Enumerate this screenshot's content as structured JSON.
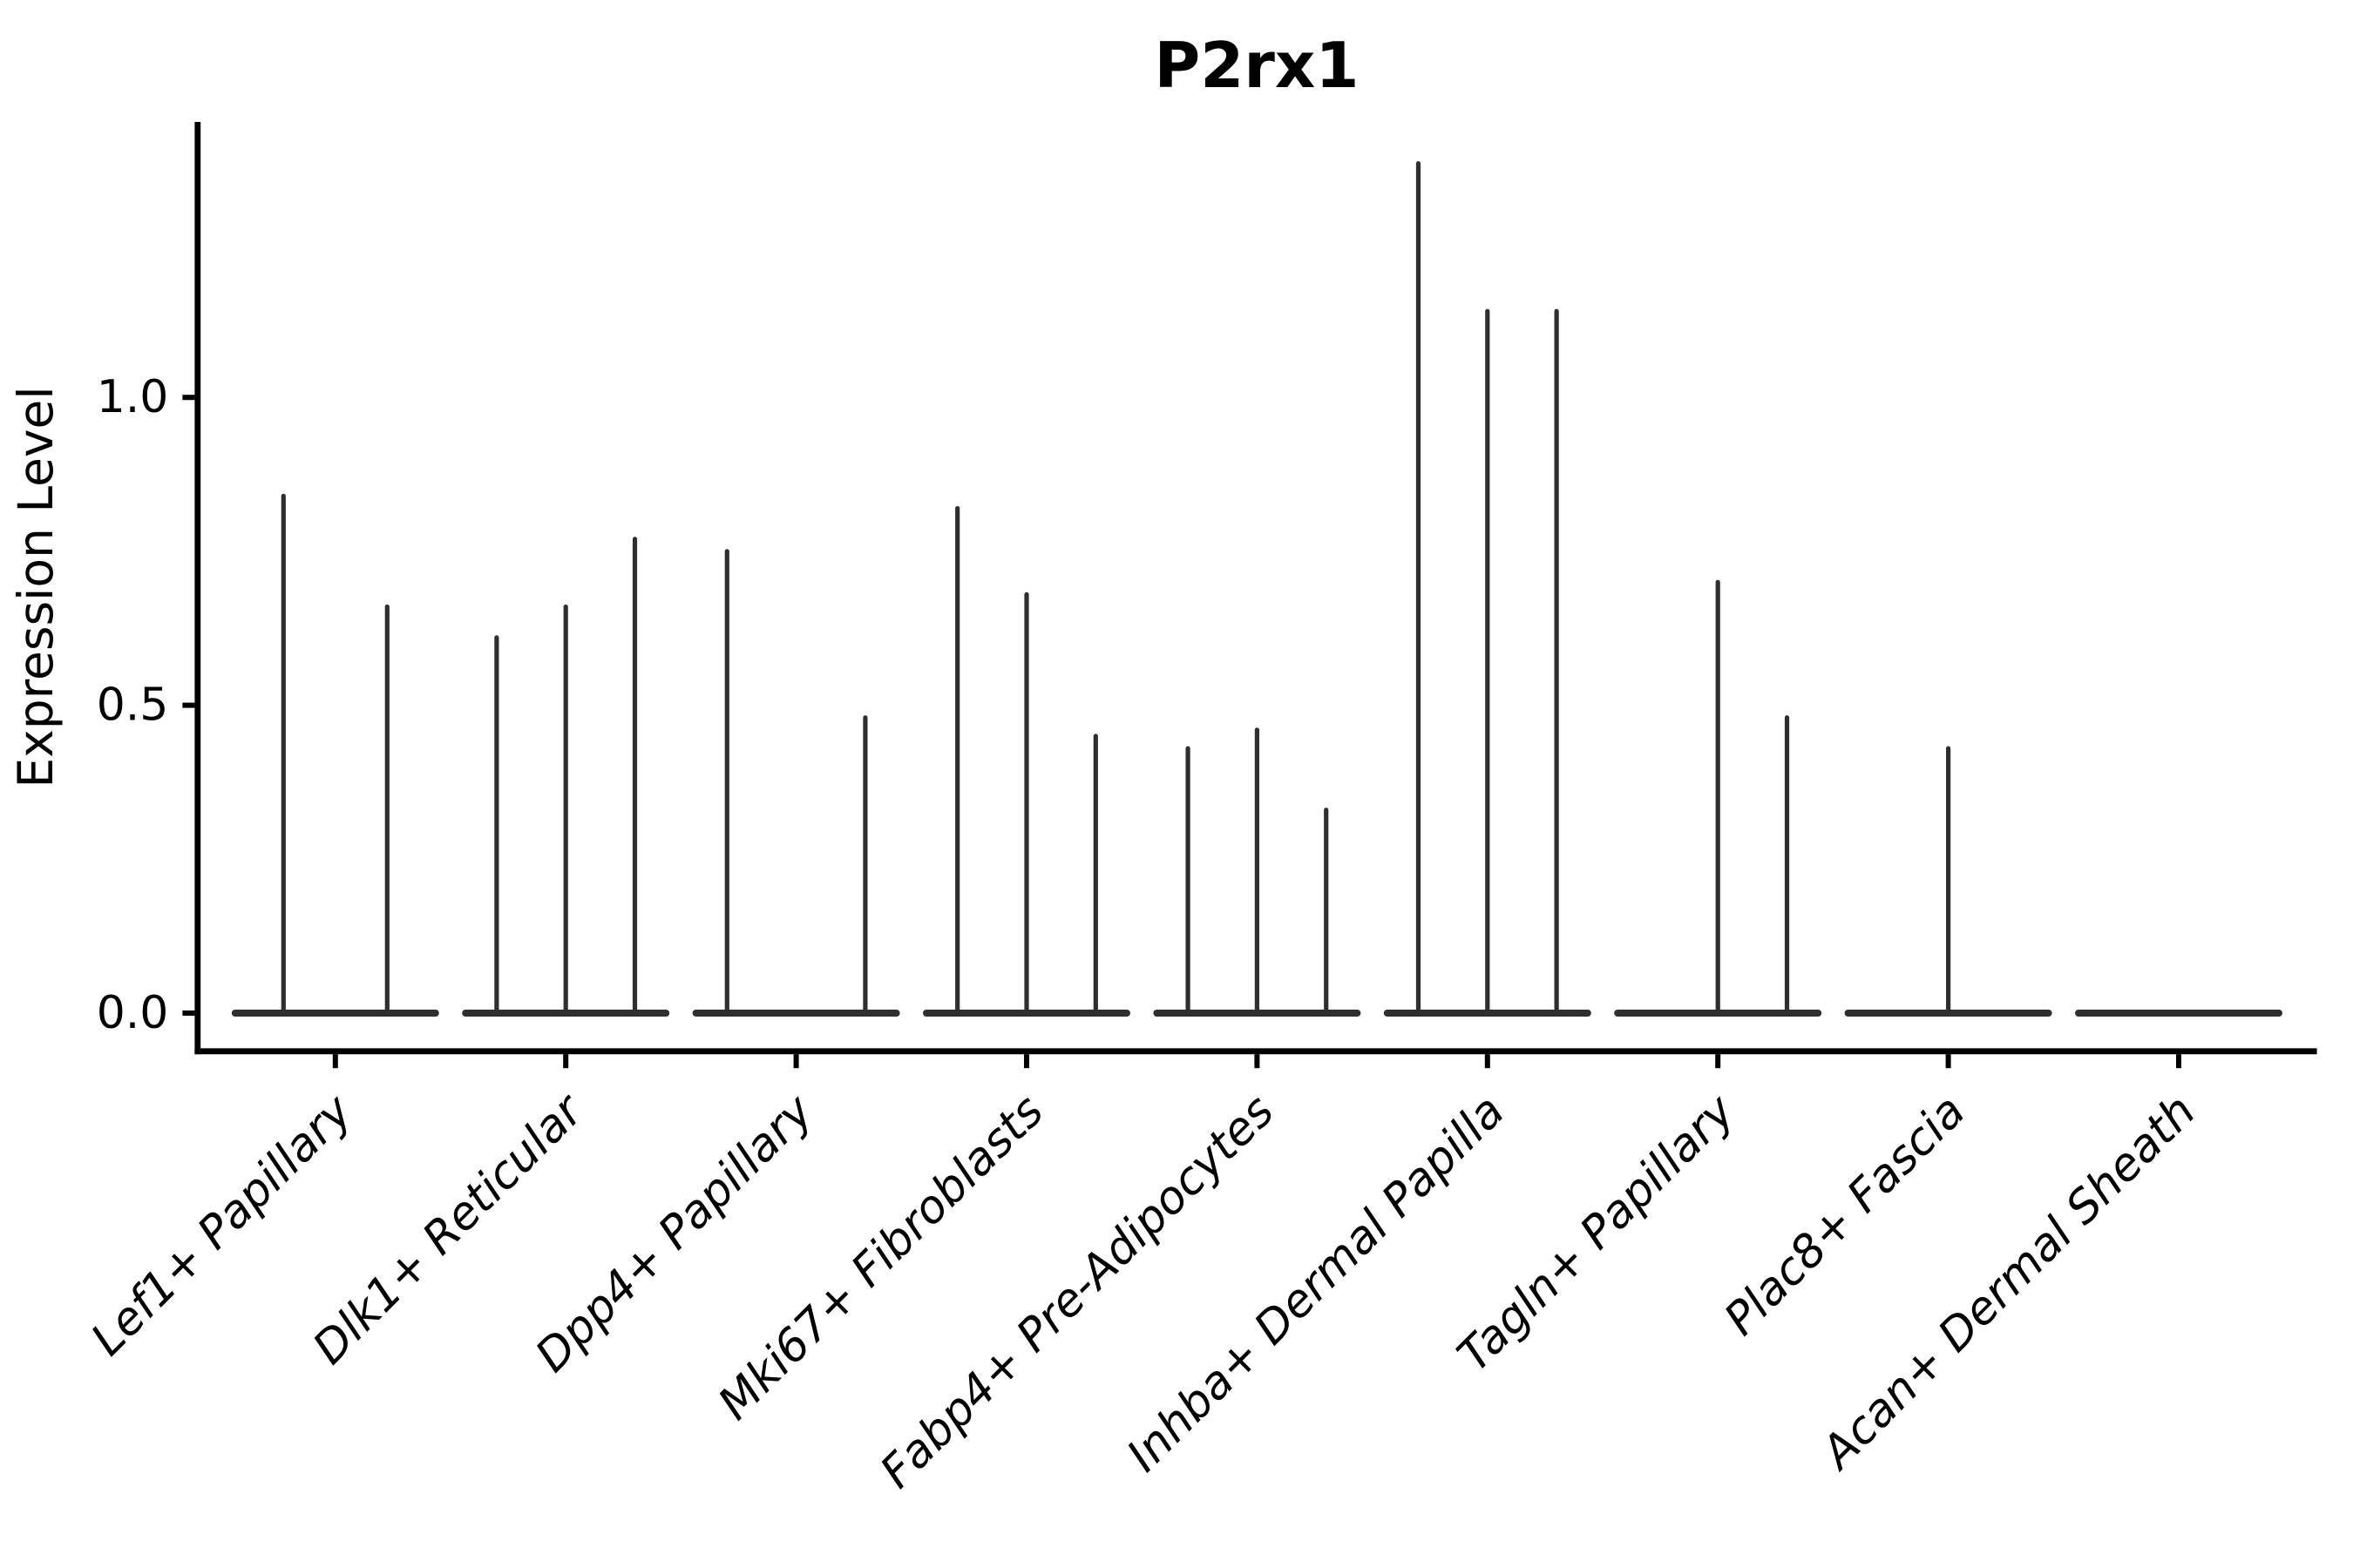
{
  "figure": {
    "background_color": "#ffffff",
    "axis_color": "#000000",
    "violin_color": "#2f2f2f"
  },
  "chart_data": {
    "type": "violin",
    "title": "P2rx1",
    "xlabel": "",
    "ylabel": "Expression Level",
    "grid": false,
    "legend": "none",
    "ylim": [
      -0.07,
      1.45
    ],
    "ytick_values": [
      0.0,
      0.5,
      1.0
    ],
    "ytick_labels": [
      "0.0",
      "0.5",
      "1.0"
    ],
    "x_tick_label_rotation_deg": 45,
    "group_width_fraction": 0.9,
    "categories": [
      "Lef1+ Papillary",
      "Dlk1+ Reticular",
      "Dpp4+ Papillary",
      "Mki67+ Fibroblasts",
      "Fabp4+ Pre-Adipocytes",
      "Inhba+ Dermal Papilla",
      "Tagln+ Papillary",
      "Plac8+ Fascia",
      "Acan+ Dermal Sheath"
    ],
    "groups": [
      {
        "category": "Lef1+ Papillary",
        "violin_maxima": [
          0.84,
          0.66
        ]
      },
      {
        "category": "Dlk1+ Reticular",
        "violin_maxima": [
          0.61,
          0.66,
          0.77
        ]
      },
      {
        "category": "Dpp4+ Papillary",
        "violin_maxima": [
          0.75,
          0.0,
          0.48
        ]
      },
      {
        "category": "Mki67+ Fibroblasts",
        "violin_maxima": [
          0.82,
          0.68,
          0.45
        ]
      },
      {
        "category": "Fabp4+ Pre-Adipocytes",
        "violin_maxima": [
          0.43,
          0.46,
          0.33
        ]
      },
      {
        "category": "Inhba+ Dermal Papilla",
        "violin_maxima": [
          1.38,
          1.14,
          1.14
        ]
      },
      {
        "category": "Tagln+ Papillary",
        "violin_maxima": [
          0.0,
          0.7,
          0.48
        ]
      },
      {
        "category": "Plac8+ Fascia",
        "violin_maxima": [
          0.0,
          0.43,
          0.0
        ]
      },
      {
        "category": "Acan+ Dermal Sheath",
        "violin_maxima": [
          0.0,
          0.0,
          0.0
        ]
      }
    ]
  }
}
